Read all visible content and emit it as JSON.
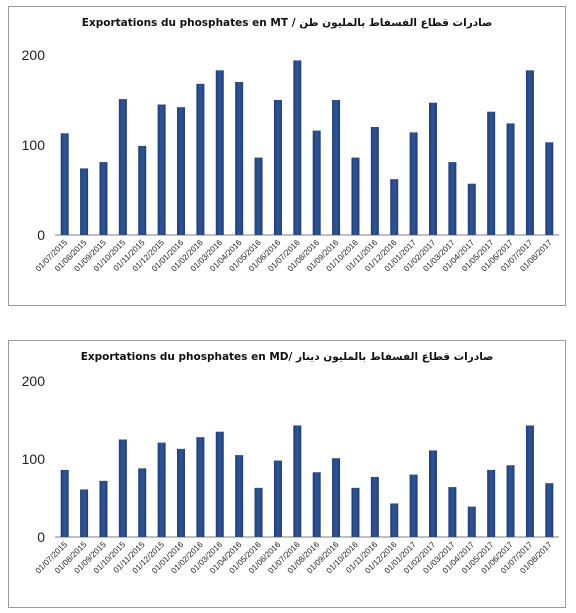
{
  "chart_data": [
    {
      "type": "bar",
      "title": "Exportations du phosphates en MT / صادرات قطاع الفسفاط بالمليون طن",
      "xlabel": "",
      "ylabel": "",
      "ylim": [
        0,
        200
      ],
      "yticks": [
        0,
        100,
        200
      ],
      "grid": false,
      "bar_color": "#2f5597",
      "categories": [
        "01/07/2015",
        "01/08/2015",
        "01/09/2015",
        "01/10/2015",
        "01/11/2015",
        "01/12/2015",
        "01/01/2016",
        "01/02/2016",
        "01/03/2016",
        "01/04/2016",
        "01/05/2016",
        "01/06/2016",
        "01/07/2016",
        "01/08/2016",
        "01/09/2016",
        "01/10/2016",
        "01/11/2016",
        "01/12/2016",
        "01/01/2017",
        "01/02/2017",
        "01/03/2017",
        "01/04/2017",
        "01/05/2017",
        "01/06/2017",
        "01/07/2017",
        "01/08/2017"
      ],
      "values": [
        113,
        74,
        81,
        151,
        99,
        145,
        142,
        168,
        183,
        170,
        86,
        150,
        194,
        116,
        150,
        86,
        120,
        62,
        114,
        147,
        81,
        57,
        137,
        124,
        183,
        103
      ]
    },
    {
      "type": "bar",
      "title": "Exportations du phosphates en MD/ صادرات قطاع الفسفاط بالمليون دينار",
      "xlabel": "",
      "ylabel": "",
      "ylim": [
        0,
        200
      ],
      "yticks": [
        0,
        100,
        200
      ],
      "grid": false,
      "bar_color": "#2f5597",
      "categories": [
        "01/07/2015",
        "01/08/2015",
        "01/09/2015",
        "01/10/2015",
        "01/11/2015",
        "01/12/2015",
        "01/01/2016",
        "01/02/2016",
        "01/03/2016",
        "01/04/2016",
        "01/05/2016",
        "01/06/2016",
        "01/07/2016",
        "01/08/2016",
        "01/09/2016",
        "01/10/2016",
        "01/11/2016",
        "01/12/2016",
        "01/01/2017",
        "01/02/2017",
        "01/03/2017",
        "01/04/2017",
        "01/05/2017",
        "01/06/2017",
        "01/07/2017",
        "01/08/2017"
      ],
      "values": [
        86,
        61,
        72,
        125,
        88,
        121,
        113,
        128,
        135,
        105,
        63,
        98,
        143,
        83,
        101,
        63,
        77,
        43,
        80,
        111,
        64,
        39,
        86,
        92,
        143,
        69
      ]
    }
  ]
}
